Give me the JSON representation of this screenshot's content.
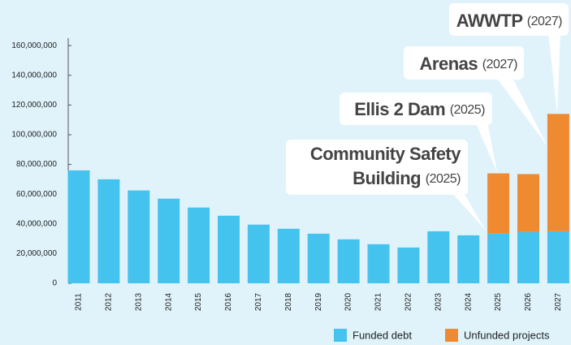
{
  "chart_data": {
    "type": "stacked_bar",
    "categories": [
      "2011",
      "2012",
      "2013",
      "2014",
      "2015",
      "2016",
      "2017",
      "2018",
      "2019",
      "2020",
      "2021",
      "2022",
      "2023",
      "2024",
      "2025",
      "2026",
      "2027"
    ],
    "series": [
      {
        "name": "Funded debt",
        "color": "#45c3ef",
        "values": [
          76000000,
          70000000,
          62500000,
          57000000,
          51000000,
          45500000,
          39500000,
          36700000,
          33400000,
          29600000,
          26300000,
          24100000,
          35000000,
          32300000,
          33400000,
          34500000,
          35000000
        ]
      },
      {
        "name": "Unfunded projects",
        "color": "#f08a30",
        "values": [
          null,
          null,
          null,
          null,
          null,
          null,
          null,
          null,
          null,
          null,
          null,
          null,
          null,
          null,
          40600000,
          39000000,
          79000000
        ]
      }
    ],
    "ylim": [
      0,
      165000000
    ],
    "yticks": [
      0,
      {
        "value": 20000000,
        "label": "20,000,000"
      },
      {
        "value": 40000000,
        "label": "40,000,000"
      },
      {
        "value": 60000000,
        "label": "60,000,000"
      },
      {
        "value": 80000000,
        "label": "80,000,000"
      },
      {
        "value": 100000000,
        "label": "100,000,000"
      },
      {
        "value": 120000000,
        "label": "120,000,000"
      },
      {
        "value": 140000000,
        "label": "140,000,000"
      },
      {
        "value": 160000000,
        "label": "160,000,000"
      }
    ],
    "annotations": [
      {
        "lines": [
          "AWWTP"
        ],
        "note": "(2027)"
      },
      {
        "lines": [
          "Arenas"
        ],
        "note": "(2027)"
      },
      {
        "lines": [
          "Ellis 2 Dam"
        ],
        "note": "(2025)"
      },
      {
        "lines": [
          "Community Safety",
          "Building"
        ],
        "note": "(2025)"
      }
    ]
  }
}
